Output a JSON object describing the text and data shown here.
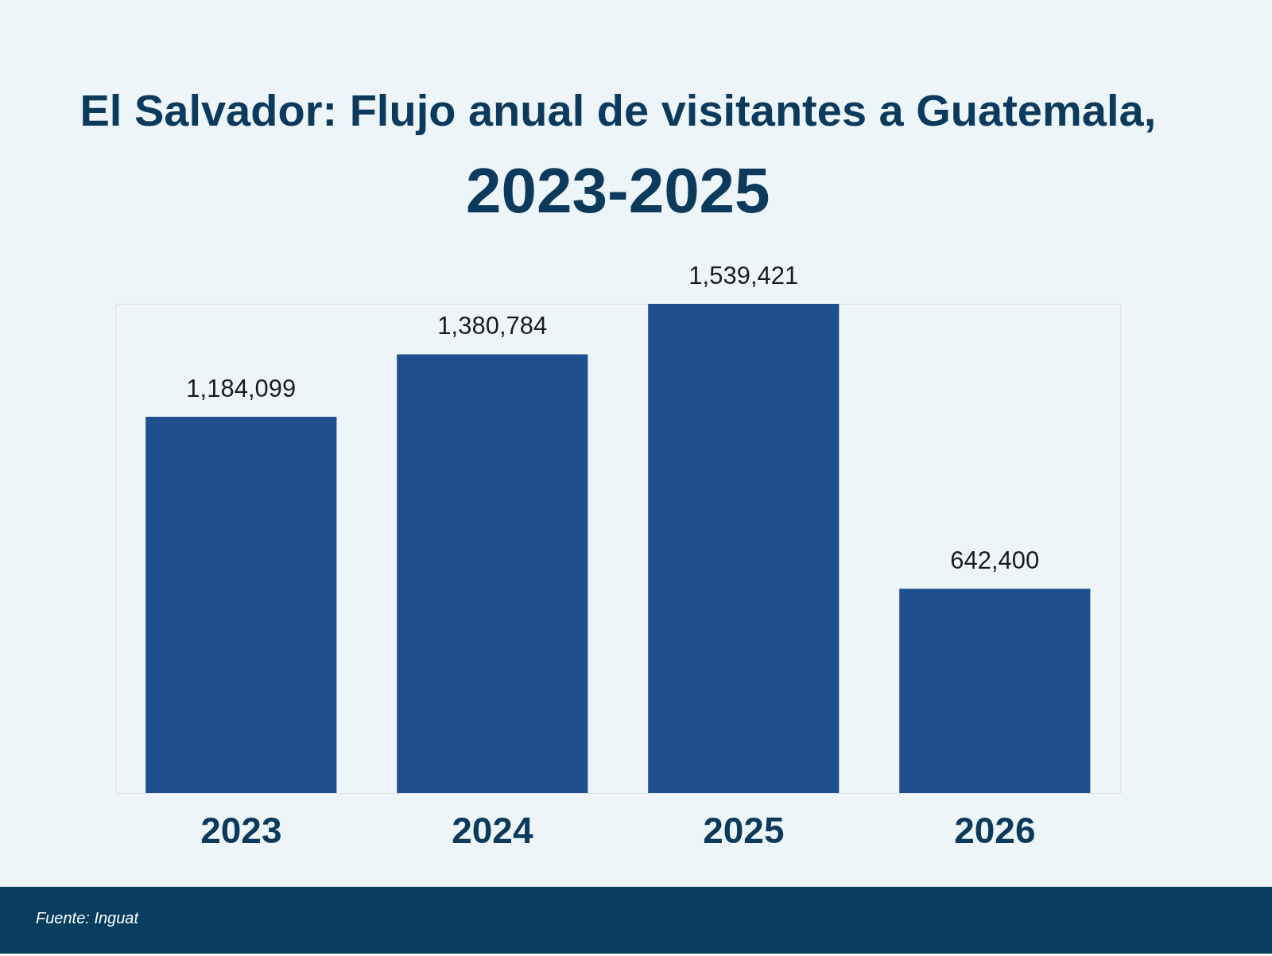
{
  "chart_data": {
    "type": "bar",
    "title": "El Salvador: Flujo anual de visitantes a Guatemala,",
    "subtitle": "2023-2025",
    "categories": [
      "2023",
      "2024",
      "2025",
      "2026"
    ],
    "values": [
      1184099,
      1380784,
      1539421,
      642400
    ],
    "value_labels": [
      "1,184,099",
      "1,380,784",
      "1,539,421",
      "642,400"
    ],
    "color": "#1e4f8e",
    "annotations": [
      "Fuente: Inguat"
    ]
  }
}
